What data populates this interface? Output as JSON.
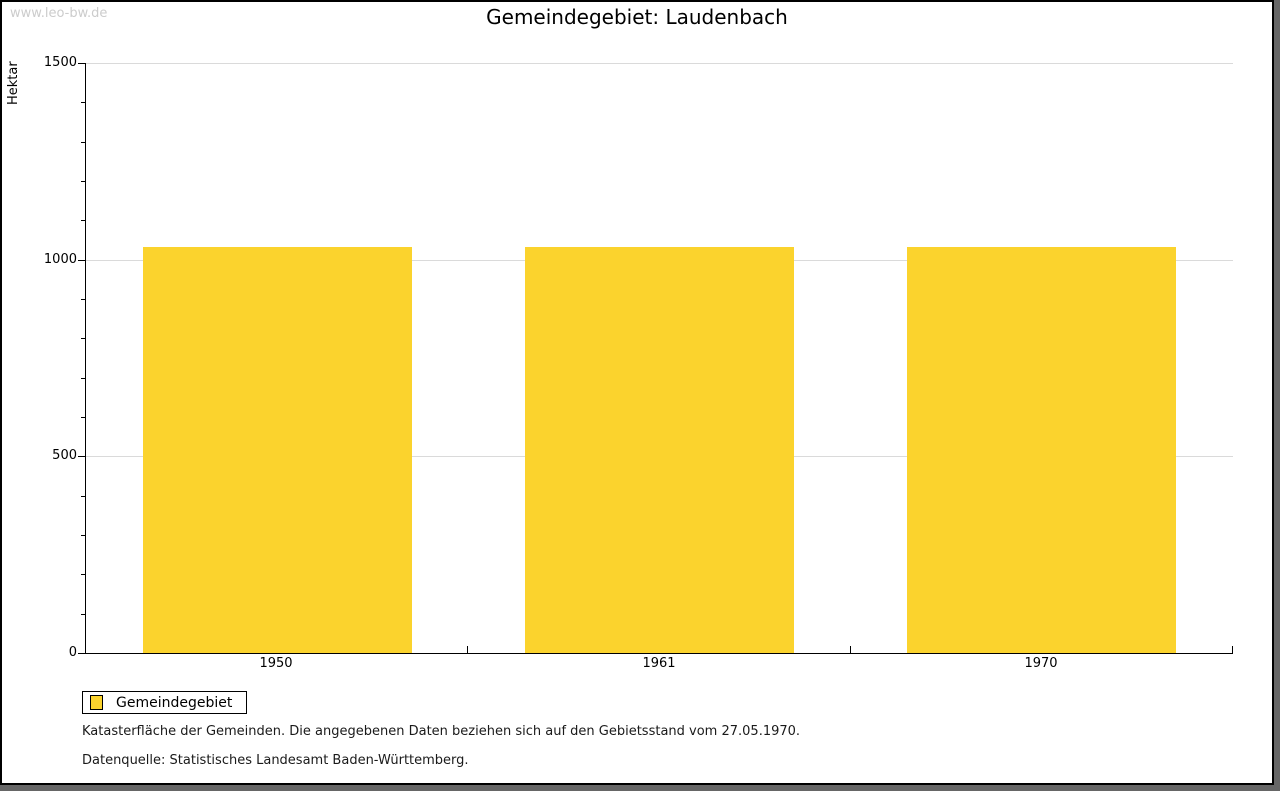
{
  "watermark": "www.leo-bw.de",
  "title": "Gemeindegebiet: Laudenbach",
  "chart_data": {
    "type": "bar",
    "categories": [
      "1950",
      "1961",
      "1970"
    ],
    "series": [
      {
        "name": "Gemeindegebiet",
        "values": [
          1032,
          1032,
          1032
        ]
      }
    ],
    "title": "Gemeindegebiet: Laudenbach",
    "xlabel": "",
    "ylabel": "Hektar",
    "ylim": [
      0,
      1500
    ],
    "ytick_major_step": 500,
    "ytick_minor_step": 100,
    "grid": true,
    "legend_position": "bottom-left",
    "bar_color": "#fbd32d",
    "gridline_color": "#dadada"
  },
  "legend": {
    "label": "Gemeindegebiet"
  },
  "footnotes": {
    "line1": "Katasterfläche der Gemeinden. Die angegebenen Daten beziehen sich auf den Gebietsstand vom 27.05.1970.",
    "line2": "Datenquelle: Statistisches Landesamt Baden-Württemberg."
  },
  "colors": {
    "bar": "#fbd32d",
    "gridline": "#dadada",
    "watermark": "#cccccc",
    "frame_shadow": "#666666",
    "axis": "#000000"
  }
}
